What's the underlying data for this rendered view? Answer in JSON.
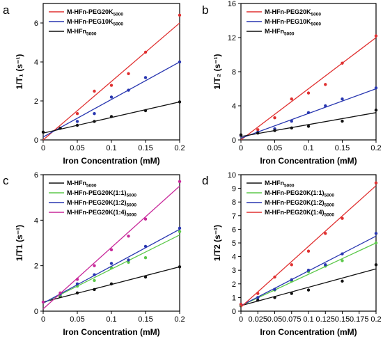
{
  "chart_data": [
    {
      "panel_label": "a",
      "type": "scatter",
      "xlabel": "Iron Concentration (mM)",
      "ylabel": "1/T₁ (s⁻¹)",
      "xlim": [
        0,
        0.2
      ],
      "ylim": [
        0,
        7
      ],
      "xticks": [
        "0",
        "0.05",
        "0.1",
        "0.15",
        "0.2"
      ],
      "xticks_v": [
        0,
        0.05,
        0.1,
        0.15,
        0.2
      ],
      "yticks": [
        "0",
        "2",
        "4",
        "6"
      ],
      "yticks_v": [
        0,
        2,
        4,
        6
      ],
      "legend_position": "top-left",
      "series": [
        {
          "name": "M-HFn-PEG20K",
          "subscript": "5000",
          "color": "#e03030",
          "x": [
            0.025,
            0.05,
            0.075,
            0.1,
            0.125,
            0.15,
            0.2
          ],
          "values": [
            0.6,
            1.35,
            2.5,
            2.8,
            3.4,
            4.5,
            6.4
          ],
          "fit": [
            0.0,
            6.0
          ]
        },
        {
          "name": "M-HFn-PEG10K",
          "subscript": "5000",
          "color": "#2836b0",
          "x": [
            0.025,
            0.05,
            0.075,
            0.1,
            0.125,
            0.15,
            0.2
          ],
          "values": [
            0.6,
            0.95,
            1.35,
            2.2,
            2.55,
            3.2,
            4.0
          ],
          "fit": [
            0.15,
            4.0
          ]
        },
        {
          "name": "M-HFn",
          "subscript": "5000",
          "color": "#111111",
          "x": [
            0,
            0.025,
            0.05,
            0.075,
            0.1,
            0.15,
            0.2
          ],
          "values": [
            0.4,
            0.6,
            0.75,
            0.95,
            1.2,
            1.5,
            1.95
          ],
          "fit": [
            0.35,
            1.95
          ]
        }
      ]
    },
    {
      "panel_label": "b",
      "type": "scatter",
      "xlabel": "Iron Concentration (mM)",
      "ylabel": "1/T₂ (s⁻¹)",
      "xlim": [
        0,
        0.2
      ],
      "ylim": [
        0,
        16
      ],
      "xticks": [
        "0",
        "0.05",
        "0.1",
        "0.15",
        "0.2"
      ],
      "xticks_v": [
        0,
        0.05,
        0.1,
        0.15,
        0.2
      ],
      "yticks": [
        "0",
        "4",
        "8",
        "12",
        "16"
      ],
      "yticks_v": [
        0,
        4,
        8,
        12,
        16
      ],
      "legend_position": "top-left",
      "series": [
        {
          "name": "M-HFn-PEG20K",
          "subscript": "5000",
          "color": "#e03030",
          "x": [
            0,
            0.025,
            0.05,
            0.075,
            0.1,
            0.125,
            0.15,
            0.2
          ],
          "values": [
            0.5,
            1.2,
            2.6,
            4.8,
            5.5,
            6.5,
            9.0,
            12.2
          ],
          "fit": [
            0.0,
            12.0
          ]
        },
        {
          "name": "M-HFn-PEG10K",
          "subscript": "5000",
          "color": "#2836b0",
          "x": [
            0,
            0.025,
            0.05,
            0.075,
            0.1,
            0.125,
            0.15,
            0.2
          ],
          "values": [
            0.5,
            0.9,
            1.3,
            2.2,
            3.2,
            4.0,
            4.8,
            6.1
          ],
          "fit": [
            0.2,
            6.0
          ]
        },
        {
          "name": "M-HFn",
          "subscript": "5000",
          "color": "#111111",
          "x": [
            0,
            0.025,
            0.05,
            0.075,
            0.1,
            0.15,
            0.2
          ],
          "values": [
            0.6,
            0.8,
            1.1,
            1.4,
            1.6,
            2.2,
            3.5
          ],
          "fit": [
            0.4,
            3.2
          ]
        }
      ]
    },
    {
      "panel_label": "c",
      "type": "scatter",
      "xlabel": "Iron Concentration (mM)",
      "ylabel": "1/T1 (s⁻¹)",
      "xlim": [
        0,
        0.2
      ],
      "ylim": [
        0,
        6
      ],
      "xticks": [
        "0",
        "0.05",
        "0.1",
        "0.15",
        "0.2"
      ],
      "xticks_v": [
        0,
        0.05,
        0.1,
        0.15,
        0.2
      ],
      "yticks": [
        "0",
        "2",
        "4",
        "6"
      ],
      "yticks_v": [
        0,
        2,
        4,
        6
      ],
      "legend_position": "top-left",
      "series": [
        {
          "name": "M-HFn",
          "subscript": "5000",
          "color": "#111111",
          "x": [
            0.025,
            0.05,
            0.075,
            0.1,
            0.15,
            0.2
          ],
          "values": [
            0.65,
            0.8,
            0.95,
            1.2,
            1.5,
            1.95
          ],
          "fit": [
            0.4,
            1.95
          ]
        },
        {
          "name": "M-HFn-PEG20K(1:1)",
          "subscript": "5000",
          "color": "#5cc84a",
          "x": [
            0.025,
            0.05,
            0.075,
            0.1,
            0.125,
            0.15,
            0.2
          ],
          "values": [
            0.7,
            1.1,
            1.35,
            1.9,
            2.15,
            2.35,
            3.5
          ],
          "fit": [
            0.35,
            3.35
          ]
        },
        {
          "name": "M-HFn-PEG20K(1:2)",
          "subscript": "5000",
          "color": "#2836b0",
          "x": [
            0.025,
            0.05,
            0.075,
            0.1,
            0.125,
            0.15,
            0.2
          ],
          "values": [
            0.75,
            1.2,
            1.6,
            2.1,
            2.25,
            2.85,
            3.65
          ],
          "fit": [
            0.35,
            3.6
          ]
        },
        {
          "name": "M-HFn-PEG20K(1:4)",
          "subscript": "5000",
          "color": "#c8289a",
          "x": [
            0,
            0.025,
            0.05,
            0.075,
            0.1,
            0.125,
            0.15,
            0.2
          ],
          "values": [
            0.4,
            0.8,
            1.4,
            2.0,
            2.7,
            3.3,
            4.05,
            5.7
          ],
          "fit": [
            0.1,
            5.5
          ]
        }
      ]
    },
    {
      "panel_label": "d",
      "type": "scatter",
      "xlabel": "Iron Concentration (mM)",
      "ylabel": "1/T2 (s⁻¹)",
      "xlim": [
        0,
        0.2
      ],
      "ylim": [
        0,
        10
      ],
      "xticks": [
        "0",
        "0.025",
        "0.05",
        "0.075",
        "0.1",
        "0.125",
        "0.15",
        "0.175",
        "0.2"
      ],
      "xticks_v": [
        0,
        0.025,
        0.05,
        0.075,
        0.1,
        0.125,
        0.15,
        0.175,
        0.2
      ],
      "yticks": [
        "0",
        "1",
        "2",
        "3",
        "4",
        "5",
        "6",
        "7",
        "8",
        "9",
        "10"
      ],
      "yticks_v": [
        0,
        1,
        2,
        3,
        4,
        5,
        6,
        7,
        8,
        9,
        10
      ],
      "legend_position": "top-left",
      "series": [
        {
          "name": "M-HFn",
          "subscript": "5000",
          "color": "#111111",
          "x": [
            0,
            0.025,
            0.05,
            0.075,
            0.1,
            0.15,
            0.2
          ],
          "values": [
            0.4,
            0.8,
            1.0,
            1.3,
            1.55,
            2.2,
            3.4
          ],
          "fit": [
            0.4,
            3.1
          ]
        },
        {
          "name": "M-HFn-PEG20K(1:1)",
          "subscript": "5000",
          "color": "#5cc84a",
          "x": [
            0,
            0.025,
            0.05,
            0.075,
            0.1,
            0.125,
            0.15,
            0.2
          ],
          "values": [
            0.45,
            1.0,
            1.55,
            2.2,
            2.9,
            3.3,
            3.7,
            5.0
          ],
          "fit": [
            0.4,
            5.0
          ]
        },
        {
          "name": "M-HFn-PEG20K(1:2)",
          "subscript": "5000",
          "color": "#2836b0",
          "x": [
            0,
            0.025,
            0.05,
            0.075,
            0.1,
            0.125,
            0.15,
            0.2
          ],
          "values": [
            0.5,
            1.0,
            1.6,
            2.3,
            3.0,
            3.4,
            4.2,
            5.7
          ],
          "fit": [
            0.4,
            5.5
          ]
        },
        {
          "name": "M-HFn-PEG20K(1:4)",
          "subscript": "5000",
          "color": "#e03030",
          "x": [
            0,
            0.025,
            0.05,
            0.075,
            0.1,
            0.125,
            0.15,
            0.2
          ],
          "values": [
            0.5,
            1.3,
            2.5,
            3.4,
            4.4,
            5.7,
            6.8,
            9.4
          ],
          "fit": [
            0.3,
            9.2
          ]
        }
      ]
    }
  ]
}
